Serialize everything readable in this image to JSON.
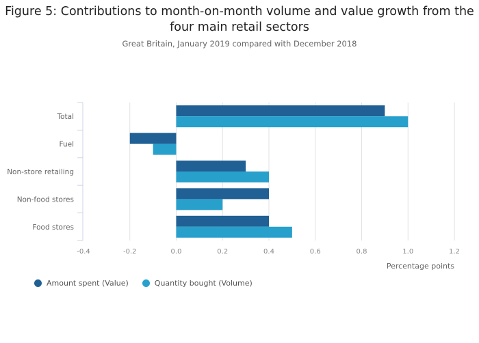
{
  "chart_data": {
    "type": "bar",
    "orientation": "horizontal",
    "title": "Figure 5: Contributions to month-on-month volume and value growth from the four main retail sectors",
    "subtitle": "Great Britain, January 2019 compared with December 2018",
    "categories": [
      "Total",
      "Fuel",
      "Non-store retailing",
      "Non-food stores",
      "Food stores"
    ],
    "series": [
      {
        "name": "Amount spent (Value)",
        "color": "#206095",
        "values": [
          0.9,
          -0.2,
          0.3,
          0.4,
          0.4
        ]
      },
      {
        "name": "Quantity bought (Volume)",
        "color": "#27a0cc",
        "values": [
          1.0,
          -0.1,
          0.4,
          0.2,
          0.5
        ]
      }
    ],
    "xlabel": "Percentage points",
    "ylabel": "",
    "xlim": [
      -0.4,
      1.2
    ],
    "xticks": [
      "-0.4",
      "-0.2",
      "0.0",
      "0.2",
      "0.4",
      "0.6",
      "0.8",
      "1.0",
      "1.2"
    ],
    "grid": true,
    "legend_position": "bottom-left"
  }
}
